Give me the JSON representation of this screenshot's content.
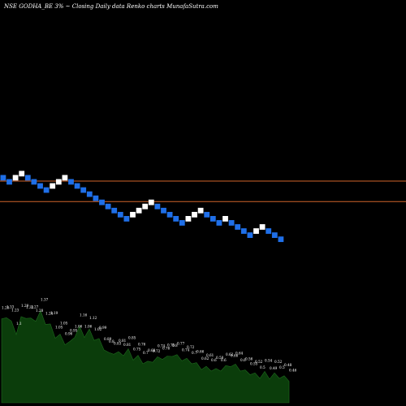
{
  "chart_data": {
    "type": "renko",
    "title": "NSE GODHA_BE 3% ~  Closing Daily data  Renko  charts MunafaSutra.com",
    "box_size_percent": 3,
    "colors": {
      "background": "#000000",
      "up_brick": "#ffffff",
      "down_brick": "#1f6fe8",
      "support_line": "#d0642a",
      "volume_fill": "#0b3d0b",
      "volume_stroke": "#1e6b1e"
    },
    "bricks": [
      {
        "dir": "down",
        "level": 0
      },
      {
        "dir": "down",
        "level": -1
      },
      {
        "dir": "up",
        "level": 0
      },
      {
        "dir": "up",
        "level": 1
      },
      {
        "dir": "down",
        "level": 0
      },
      {
        "dir": "down",
        "level": -1
      },
      {
        "dir": "down",
        "level": -2
      },
      {
        "dir": "down",
        "level": -3
      },
      {
        "dir": "up",
        "level": -2
      },
      {
        "dir": "up",
        "level": -1
      },
      {
        "dir": "up",
        "level": 0
      },
      {
        "dir": "down",
        "level": -1
      },
      {
        "dir": "down",
        "level": -2
      },
      {
        "dir": "down",
        "level": -3
      },
      {
        "dir": "down",
        "level": -4
      },
      {
        "dir": "down",
        "level": -5
      },
      {
        "dir": "down",
        "level": -6
      },
      {
        "dir": "down",
        "level": -7
      },
      {
        "dir": "down",
        "level": -8
      },
      {
        "dir": "down",
        "level": -9
      },
      {
        "dir": "down",
        "level": -10
      },
      {
        "dir": "up",
        "level": -9
      },
      {
        "dir": "up",
        "level": -8
      },
      {
        "dir": "up",
        "level": -7
      },
      {
        "dir": "up",
        "level": -6
      },
      {
        "dir": "down",
        "level": -7
      },
      {
        "dir": "down",
        "level": -8
      },
      {
        "dir": "down",
        "level": -9
      },
      {
        "dir": "down",
        "level": -10
      },
      {
        "dir": "down",
        "level": -11
      },
      {
        "dir": "up",
        "level": -10
      },
      {
        "dir": "up",
        "level": -9
      },
      {
        "dir": "up",
        "level": -8
      },
      {
        "dir": "down",
        "level": -9
      },
      {
        "dir": "down",
        "level": -10
      },
      {
        "dir": "down",
        "level": -11
      },
      {
        "dir": "up",
        "level": -10
      },
      {
        "dir": "down",
        "level": -11
      },
      {
        "dir": "down",
        "level": -12
      },
      {
        "dir": "down",
        "level": -13
      },
      {
        "dir": "down",
        "level": -14
      },
      {
        "dir": "up",
        "level": -13
      },
      {
        "dir": "up",
        "level": -12
      },
      {
        "dir": "down",
        "level": -13
      },
      {
        "dir": "down",
        "level": -14
      },
      {
        "dir": "down",
        "level": -15
      }
    ],
    "support_lines": [
      {
        "level": 0
      },
      {
        "level": -5
      }
    ],
    "volume": {
      "labels": [
        "1.26",
        "1.33",
        "1.23",
        "1.1",
        "1.29",
        "1.32",
        "1.27",
        "1.28",
        "1.37",
        "1.24",
        "1.19",
        "1.05",
        "1.05",
        "0.96",
        "0.95",
        "1.06",
        "1.16",
        "1.06",
        "1.12",
        "1.02",
        "0.99",
        "0.89",
        "0.8",
        "0.83",
        "0.81",
        "0.81",
        "0.85",
        "0.75",
        "0.76",
        "0.7",
        "0.68",
        "0.72",
        "0.74",
        "0.76",
        "0.75",
        "0.8",
        "0.77",
        "0.74",
        "0.72",
        "0.7",
        "0.66",
        "0.62",
        "0.61",
        "0.6",
        "0.58",
        "0.6",
        "0.62",
        "0.66",
        "0.64",
        "0.6",
        "0.56",
        "0.55",
        "0.52",
        "0.5",
        "0.54",
        "0.49",
        "0.52",
        "0.5",
        "0.48",
        "0.46"
      ],
      "values": [
        1.26,
        1.33,
        1.23,
        1.1,
        1.29,
        1.32,
        1.27,
        1.28,
        1.37,
        1.24,
        1.19,
        1.05,
        1.05,
        0.96,
        0.95,
        1.06,
        1.16,
        1.06,
        1.12,
        1.02,
        0.99,
        0.89,
        0.8,
        0.83,
        0.81,
        0.81,
        0.85,
        0.75,
        0.76,
        0.7,
        0.68,
        0.72,
        0.74,
        0.76,
        0.75,
        0.8,
        0.77,
        0.74,
        0.72,
        0.7,
        0.66,
        0.62,
        0.61,
        0.6,
        0.58,
        0.6,
        0.62,
        0.66,
        0.64,
        0.6,
        0.56,
        0.55,
        0.52,
        0.5,
        0.54,
        0.49,
        0.52,
        0.5,
        0.48,
        0.46
      ]
    }
  }
}
